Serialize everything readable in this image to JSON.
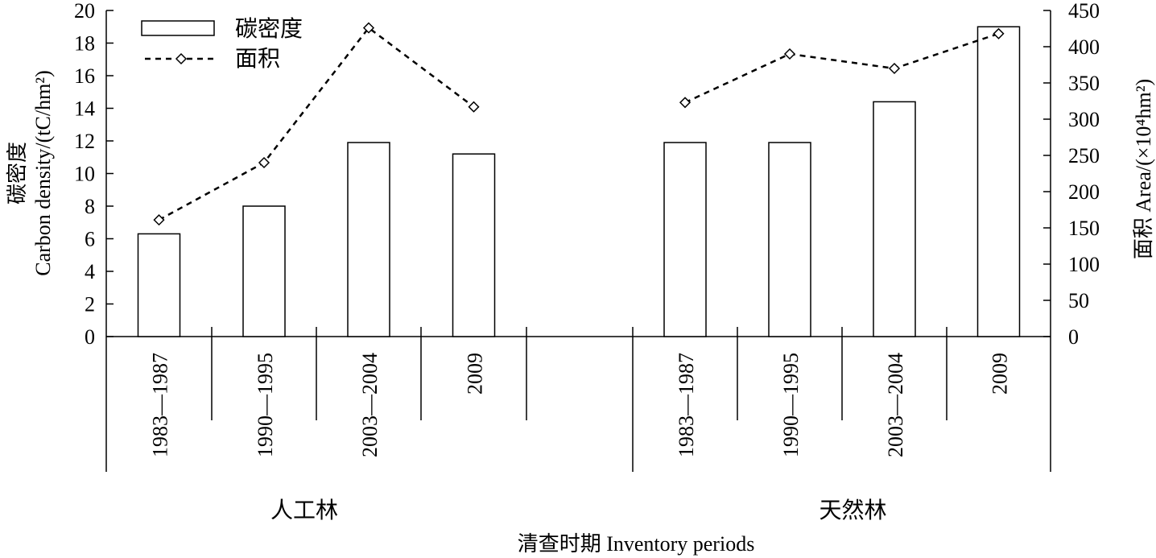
{
  "chart_data": {
    "type": "bar",
    "groups": [
      {
        "name": "人工林",
        "categories": [
          "1983—1987",
          "1990—1995",
          "2003—2004",
          "2009"
        ],
        "carbon_density": [
          6.3,
          8.0,
          11.9,
          11.2
        ],
        "area": [
          161,
          240,
          426,
          317
        ]
      },
      {
        "name": "天然林",
        "categories": [
          "1983—1987",
          "1990—1995",
          "2003—2004",
          "2009"
        ],
        "carbon_density": [
          11.9,
          11.9,
          14.4,
          19.0
        ],
        "area": [
          323,
          390,
          370,
          418
        ]
      }
    ],
    "series": [
      {
        "name": "碳密度",
        "type": "bar",
        "axis": "left"
      },
      {
        "name": "面积",
        "type": "line",
        "axis": "right",
        "marker": "diamond",
        "line_style": "dashed"
      }
    ],
    "y_left": {
      "label": "碳密度",
      "label2": "Carbon density/(tC/hm²)",
      "ylim": [
        0,
        20
      ],
      "ticks": [
        "0",
        "2",
        "4",
        "6",
        "8",
        "10",
        "12",
        "14",
        "16",
        "18",
        "20"
      ]
    },
    "y_right": {
      "label": "面积 Area/(×10⁴hm²)",
      "ylim": [
        0,
        450
      ],
      "ticks": [
        "0",
        "50",
        "100",
        "150",
        "200",
        "250",
        "300",
        "350",
        "400",
        "450"
      ]
    },
    "xlabel": "清查时期 Inventory periods",
    "legend": {
      "position": "top-left"
    },
    "grid": false
  }
}
